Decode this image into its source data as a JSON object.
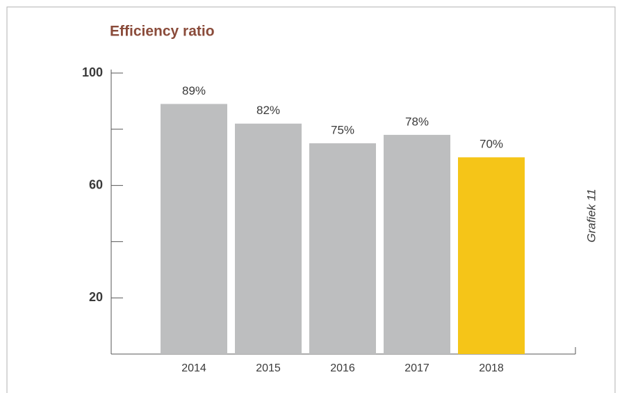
{
  "chart_data": {
    "type": "bar",
    "title": "Efficiency ratio",
    "side_label": "Grafiek 11",
    "categories": [
      "2014",
      "2015",
      "2016",
      "2017",
      "2018"
    ],
    "values": [
      89,
      82,
      75,
      78,
      70
    ],
    "value_labels": [
      "89%",
      "82%",
      "75%",
      "78%",
      "70%"
    ],
    "colors": [
      "#bdbebf",
      "#bdbebf",
      "#bdbebf",
      "#bdbebf",
      "#f5c518"
    ],
    "ylim": [
      0,
      100
    ],
    "yticks": [
      20,
      60,
      100
    ],
    "minor_yticks": [
      40,
      80
    ],
    "grid": false
  }
}
